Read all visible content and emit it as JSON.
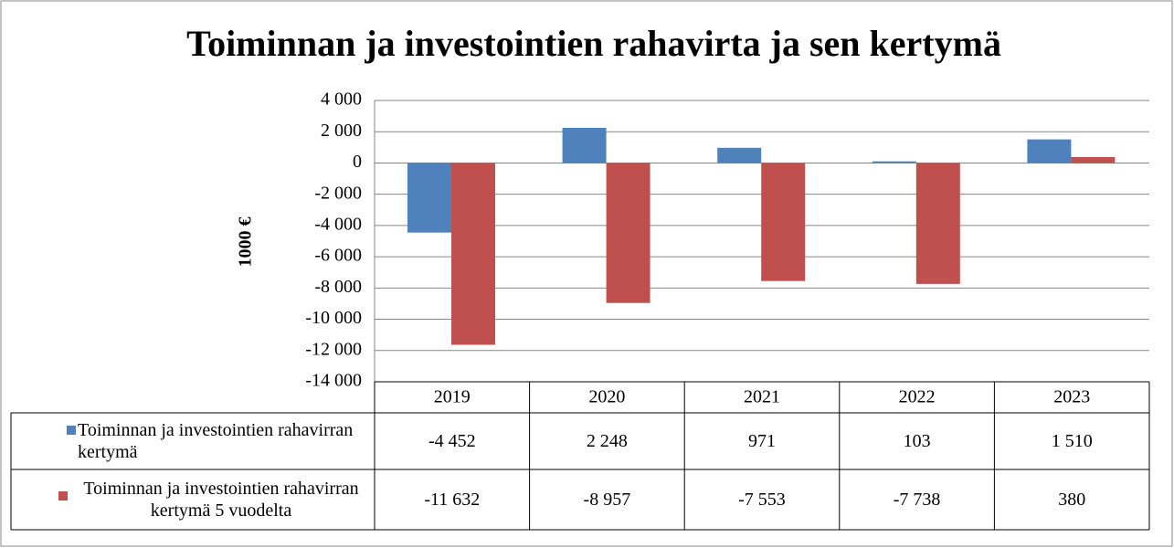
{
  "chart_data": {
    "type": "bar",
    "title": "Toiminnan ja investointien rahavirta ja sen kertymä",
    "ylabel": "1000 €",
    "categories": [
      "2019",
      "2020",
      "2021",
      "2022",
      "2023"
    ],
    "series": [
      {
        "name": "Toiminnan ja investointien rahavirran kertymä",
        "color": "#4f81bd",
        "values": [
          -4452,
          2248,
          971,
          103,
          1510
        ],
        "value_labels": [
          "-4 452",
          "2 248",
          "971",
          "103",
          "1 510"
        ]
      },
      {
        "name": "Toiminnan ja investointien rahavirran kertymä 5 vuodelta",
        "color": "#c0504d",
        "values": [
          -11632,
          -8957,
          -7553,
          -7738,
          380
        ],
        "value_labels": [
          "-11 632",
          "-8 957",
          "-7 553",
          "-7 738",
          "380"
        ]
      }
    ],
    "ylim": [
      -14000,
      4000
    ],
    "yticks": [
      {
        "value": 4000,
        "label": "4 000"
      },
      {
        "value": 2000,
        "label": "2 000"
      },
      0,
      {
        "value": -2000,
        "label": "-2 000"
      },
      {
        "value": -4000,
        "label": "-4 000"
      },
      {
        "value": -6000,
        "label": "-6 000"
      },
      {
        "value": -8000,
        "label": "-8 000"
      },
      {
        "value": -10000,
        "label": "-10 000"
      },
      {
        "value": -12000,
        "label": "-12 000"
      },
      {
        "value": -14000,
        "label": "-14 000"
      }
    ],
    "grid": true
  }
}
